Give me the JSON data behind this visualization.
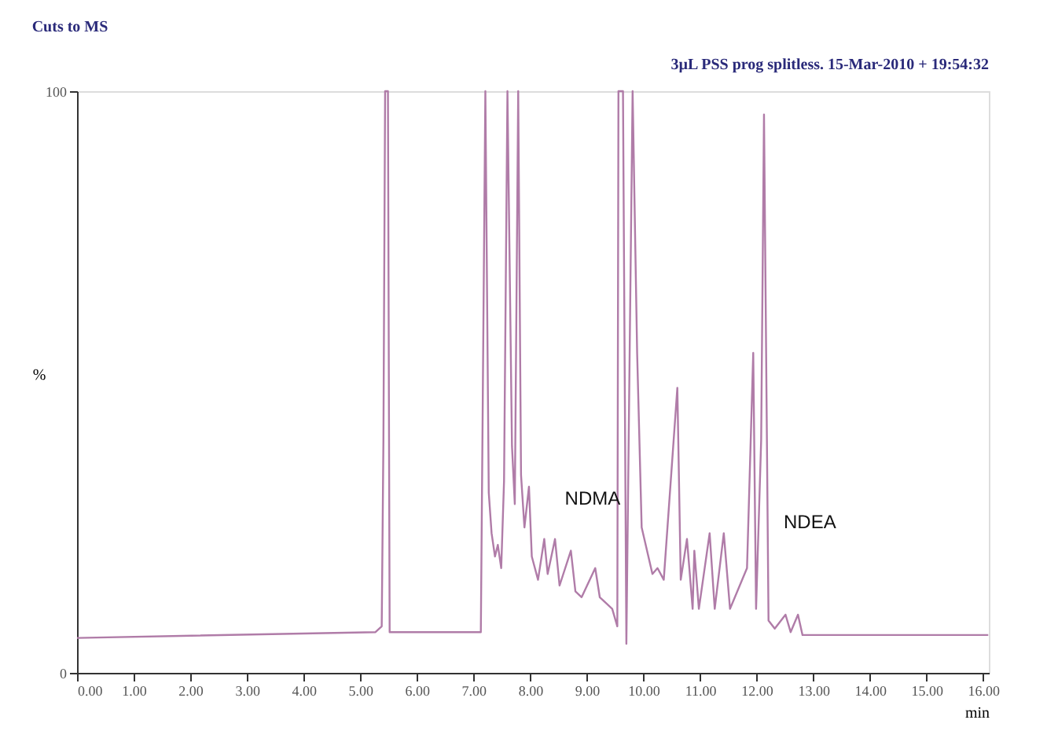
{
  "chart_data": {
    "type": "line",
    "title": "Cuts to MS",
    "xlabel": "min",
    "ylabel": "%",
    "annotations": [
      "3µL PSS prog splitless. 15-Mar-2010 + 19:54:32",
      "NDMA",
      "NDEA"
    ],
    "x": [
      0.0,
      5.27,
      5.38,
      5.41,
      5.44,
      5.49,
      5.52,
      7.13,
      7.21,
      7.27,
      7.32,
      7.38,
      7.43,
      7.49,
      7.54,
      7.6,
      7.68,
      7.73,
      7.79,
      7.84,
      7.9,
      7.98,
      8.03,
      8.14,
      8.25,
      8.31,
      8.44,
      8.52,
      8.72,
      8.8,
      8.91,
      9.15,
      9.23,
      9.45,
      9.54,
      9.56,
      9.64,
      9.7,
      9.81,
      9.89,
      9.97,
      10.16,
      10.25,
      10.36,
      10.6,
      10.66,
      10.77,
      10.87,
      10.9,
      10.98,
      11.17,
      11.26,
      11.42,
      11.53,
      11.83,
      11.94,
      11.99,
      12.08,
      12.13,
      12.21,
      12.32,
      12.51,
      12.6,
      12.73,
      12.81,
      16.09
    ],
    "series": [
      {
        "color": "#b07ca8",
        "values": [
          6,
          7,
          8,
          40,
          100,
          100,
          7,
          7,
          100,
          31,
          24,
          20,
          22,
          18,
          33,
          100,
          39,
          29,
          100,
          34,
          25,
          32,
          20,
          16,
          23,
          17,
          23,
          15,
          21,
          14,
          13,
          18,
          13,
          11,
          8,
          100,
          100,
          5,
          100,
          55,
          25,
          17,
          18,
          16,
          49,
          16,
          23,
          11,
          21,
          11,
          24,
          11,
          24,
          11,
          18,
          55,
          11,
          40,
          96,
          9,
          7.6,
          10,
          7,
          10,
          6.5,
          6.5
        ]
      }
    ],
    "xlim": [
      0,
      16.1
    ],
    "ylim": [
      0,
      100
    ],
    "xticks": [
      {
        "value": 0,
        "label": "0.00"
      },
      {
        "value": 1,
        "label": "1.00"
      },
      {
        "value": 2,
        "label": "2.00"
      },
      {
        "value": 3,
        "label": "3.00"
      },
      {
        "value": 4,
        "label": "4.00"
      },
      {
        "value": 5,
        "label": "5.00"
      },
      {
        "value": 6,
        "label": "6.00"
      },
      {
        "value": 7,
        "label": "7.00"
      },
      {
        "value": 8,
        "label": "8.00"
      },
      {
        "value": 9,
        "label": "9.00"
      },
      {
        "value": 10,
        "label": "10.00"
      },
      {
        "value": 11,
        "label": "11.00"
      },
      {
        "value": 12,
        "label": "12.00"
      },
      {
        "value": 13,
        "label": "13.00"
      },
      {
        "value": 14,
        "label": "14.00"
      },
      {
        "value": 15,
        "label": "15.00"
      },
      {
        "value": 16,
        "label": "16.00"
      }
    ],
    "yticks": [
      0,
      100
    ],
    "grid": false,
    "marker": "none",
    "line_style": "solid"
  }
}
